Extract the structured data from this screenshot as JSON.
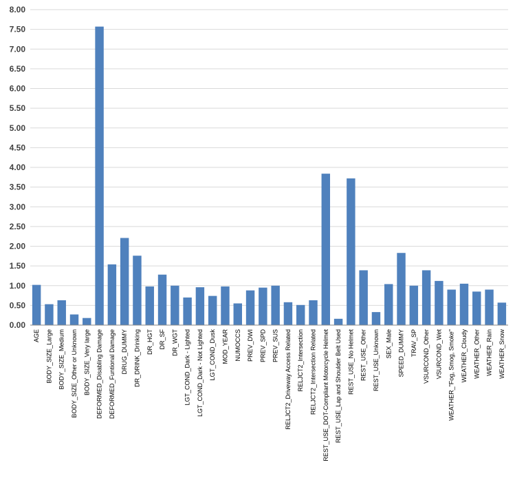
{
  "chart_data": {
    "type": "bar",
    "title": "",
    "xlabel": "",
    "ylabel": "",
    "ylim": [
      0,
      8
    ],
    "ytick_step": 0.5,
    "ytick_labels": [
      "0.00",
      "0.50",
      "1.00",
      "1.50",
      "2.00",
      "2.50",
      "3.00",
      "3.50",
      "4.00",
      "4.50",
      "5.00",
      "5.50",
      "6.00",
      "6.50",
      "7.00",
      "7.50",
      "8.00"
    ],
    "grid": "horizontal",
    "legend": "none",
    "bar_color": "#4f81bd",
    "grid_color": "#d9d9d9",
    "axis_color": "#868686",
    "categories": [
      "AGE",
      "BODY_SIZE_Large",
      "BODY_SIZE_Medium",
      "BODY_SIZE_Other or Unknown",
      "BODY_SIZE_Very large",
      "DEFORMED_Disabling Damage",
      "DEFORMED_Funtional Damage",
      "DRUG_DUMMY",
      "DR_DRINK_Drinking",
      "DR_HGT",
      "DR_SF",
      "DR_WGT",
      "LGT_COND_Dark - Lighted",
      "LGT_COND_Dark - Not Lighted",
      "LGT_COND_Dusk",
      "MOD_YEAR",
      "NUMOCCS",
      "PREV_DWI",
      "PREV_SPD",
      "PREV_SUS",
      "RELJCT2_Driveway Access Related",
      "RELJCT2_Intersection",
      "RELJCT2_Intersection Related",
      "REST_USE_DOT-Compliant Motorcycle Helmet",
      "REST_USE_Lap and Shoulder Belt Used",
      "REST_USE_No Helmet",
      "REST_USE_Other",
      "REST_USE_Unknown",
      "SEX_Male",
      "SPEED_DUMMY",
      "TRAV_SP",
      "VSURCOND_Other",
      "VSURCOND_Wet",
      "WEATHER_\"Fog, Smog, Smoke\"",
      "WEATHER_Cloudy",
      "WEATHER_Other",
      "WEATHER_Rain",
      "WEATHER_Snow"
    ],
    "values": [
      1.02,
      0.53,
      0.63,
      0.27,
      0.18,
      7.57,
      1.54,
      2.21,
      1.76,
      0.98,
      1.28,
      1.0,
      0.7,
      0.96,
      0.74,
      0.98,
      0.55,
      0.88,
      0.95,
      1.0,
      0.58,
      0.51,
      0.63,
      3.84,
      0.16,
      3.72,
      1.39,
      0.33,
      1.04,
      1.83,
      1.0,
      1.39,
      1.12,
      0.9,
      1.05,
      0.85,
      0.9,
      0.57
    ]
  }
}
